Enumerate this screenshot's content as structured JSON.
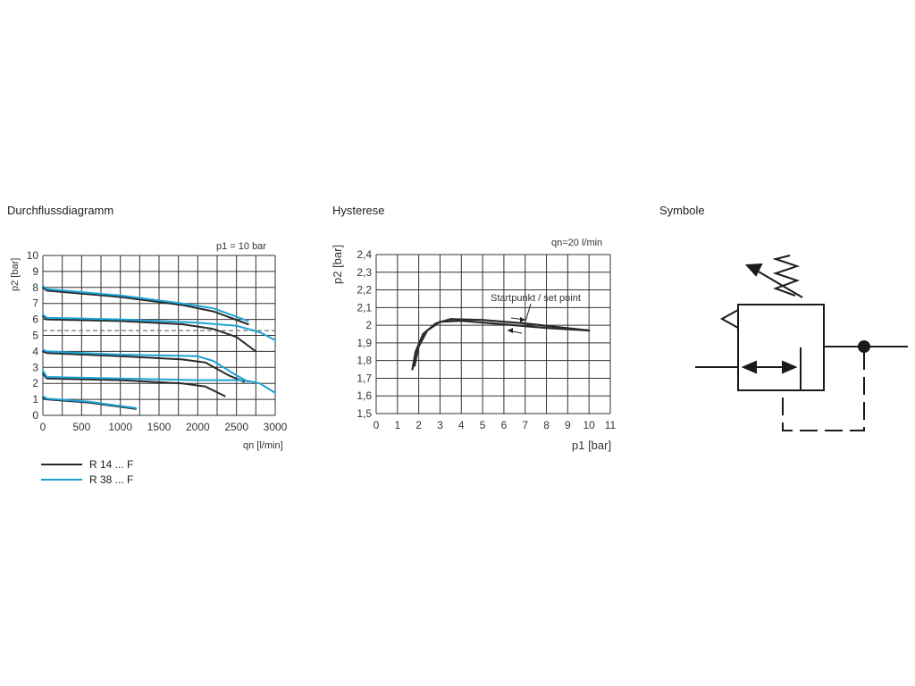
{
  "captions": {
    "flow": "Durchflussdiagramm",
    "hysteresis": "Hysterese",
    "symbol": "Symbole"
  },
  "colors": {
    "r14": "#2a2a2a",
    "r38": "#1ba3d6",
    "grid": "#333333"
  },
  "chart_data": [
    {
      "type": "line",
      "title": "",
      "annotation": "p1 = 10 bar",
      "xlabel": "qn [l/min]",
      "ylabel": "p2 [bar]",
      "xlim": [
        0,
        3000
      ],
      "ylim": [
        0,
        10
      ],
      "xticks": [
        0,
        500,
        1000,
        1500,
        2000,
        2500,
        3000
      ],
      "yticks": [
        0,
        1,
        2,
        3,
        4,
        5,
        6,
        7,
        8,
        9,
        10
      ],
      "grid": true,
      "reference_line": {
        "y": 5.3,
        "style": "dashed"
      },
      "legend": [
        {
          "key": "r14",
          "label": "R 14 ... F"
        },
        {
          "key": "r38",
          "label": "R 38 ... F"
        }
      ],
      "series": [
        {
          "key": "r14",
          "points": [
            [
              0,
              8.0
            ],
            [
              50,
              7.8
            ],
            [
              1000,
              7.4
            ],
            [
              1800,
              6.9
            ],
            [
              2200,
              6.5
            ],
            [
              2650,
              5.7
            ]
          ]
        },
        {
          "key": "r38",
          "points": [
            [
              0,
              8.1
            ],
            [
              50,
              7.9
            ],
            [
              1000,
              7.5
            ],
            [
              1800,
              7.0
            ],
            [
              2200,
              6.7
            ],
            [
              2650,
              5.9
            ]
          ]
        },
        {
          "key": "r14",
          "points": [
            [
              0,
              6.2
            ],
            [
              50,
              6.0
            ],
            [
              1000,
              5.9
            ],
            [
              1800,
              5.7
            ],
            [
              2200,
              5.4
            ],
            [
              2500,
              4.9
            ],
            [
              2750,
              4.0
            ]
          ]
        },
        {
          "key": "r38",
          "points": [
            [
              0,
              6.3
            ],
            [
              50,
              6.1
            ],
            [
              1000,
              6.0
            ],
            [
              2000,
              5.8
            ],
            [
              2500,
              5.6
            ],
            [
              2800,
              5.2
            ],
            [
              3000,
              4.7
            ]
          ]
        },
        {
          "key": "r14",
          "points": [
            [
              0,
              4.0
            ],
            [
              50,
              3.9
            ],
            [
              1000,
              3.7
            ],
            [
              1800,
              3.5
            ],
            [
              2100,
              3.3
            ],
            [
              2400,
              2.5
            ],
            [
              2600,
              2.1
            ]
          ]
        },
        {
          "key": "r38",
          "points": [
            [
              0,
              4.1
            ],
            [
              50,
              4.0
            ],
            [
              1000,
              3.8
            ],
            [
              2000,
              3.7
            ],
            [
              2200,
              3.4
            ],
            [
              2500,
              2.5
            ],
            [
              2650,
              2.1
            ]
          ]
        },
        {
          "key": "r14",
          "points": [
            [
              0,
              2.6
            ],
            [
              50,
              2.3
            ],
            [
              1000,
              2.2
            ],
            [
              1800,
              2.0
            ],
            [
              2100,
              1.8
            ],
            [
              2350,
              1.2
            ]
          ]
        },
        {
          "key": "r38",
          "points": [
            [
              0,
              2.8
            ],
            [
              50,
              2.4
            ],
            [
              1000,
              2.3
            ],
            [
              2000,
              2.2
            ],
            [
              2600,
              2.2
            ],
            [
              2800,
              2.0
            ],
            [
              3000,
              1.4
            ]
          ]
        },
        {
          "key": "r14",
          "points": [
            [
              0,
              1.1
            ],
            [
              50,
              1.0
            ],
            [
              600,
              0.8
            ],
            [
              1200,
              0.4
            ]
          ]
        },
        {
          "key": "r38",
          "points": [
            [
              0,
              1.2
            ],
            [
              50,
              1.05
            ],
            [
              600,
              0.85
            ],
            [
              1200,
              0.45
            ]
          ]
        }
      ]
    },
    {
      "type": "line",
      "title": "",
      "annotation": "qn=20 l/min",
      "xlabel": "p1 [bar]",
      "ylabel": "p2 [bar]",
      "xlim": [
        0,
        11
      ],
      "ylim": [
        1.5,
        2.4
      ],
      "xticks": [
        "0",
        "1",
        "2",
        "3",
        "4",
        "5",
        "6",
        "7",
        "8",
        "9",
        "10",
        "11"
      ],
      "yticks": [
        "1,5",
        "1,6",
        "1,7",
        "1,8",
        "1,9",
        "2",
        "2,1",
        "2,2",
        "2,3",
        "2,4"
      ],
      "grid": true,
      "set_point_label": "Startpunkt / set point",
      "series": [
        {
          "key": "r14",
          "points": [
            [
              1.7,
              1.75
            ],
            [
              1.85,
              1.85
            ],
            [
              2.2,
              1.95
            ],
            [
              2.8,
              2.01
            ],
            [
              3.5,
              2.035
            ],
            [
              5,
              2.03
            ],
            [
              7,
              2.01
            ],
            [
              10,
              1.97
            ]
          ]
        },
        {
          "key": "r14",
          "points": [
            [
              1.8,
              1.77
            ],
            [
              2.0,
              1.88
            ],
            [
              2.4,
              1.97
            ],
            [
              3.0,
              2.02
            ],
            [
              4.0,
              2.025
            ],
            [
              6,
              2.005
            ],
            [
              8,
              1.985
            ],
            [
              10,
              1.97
            ]
          ]
        }
      ]
    }
  ]
}
